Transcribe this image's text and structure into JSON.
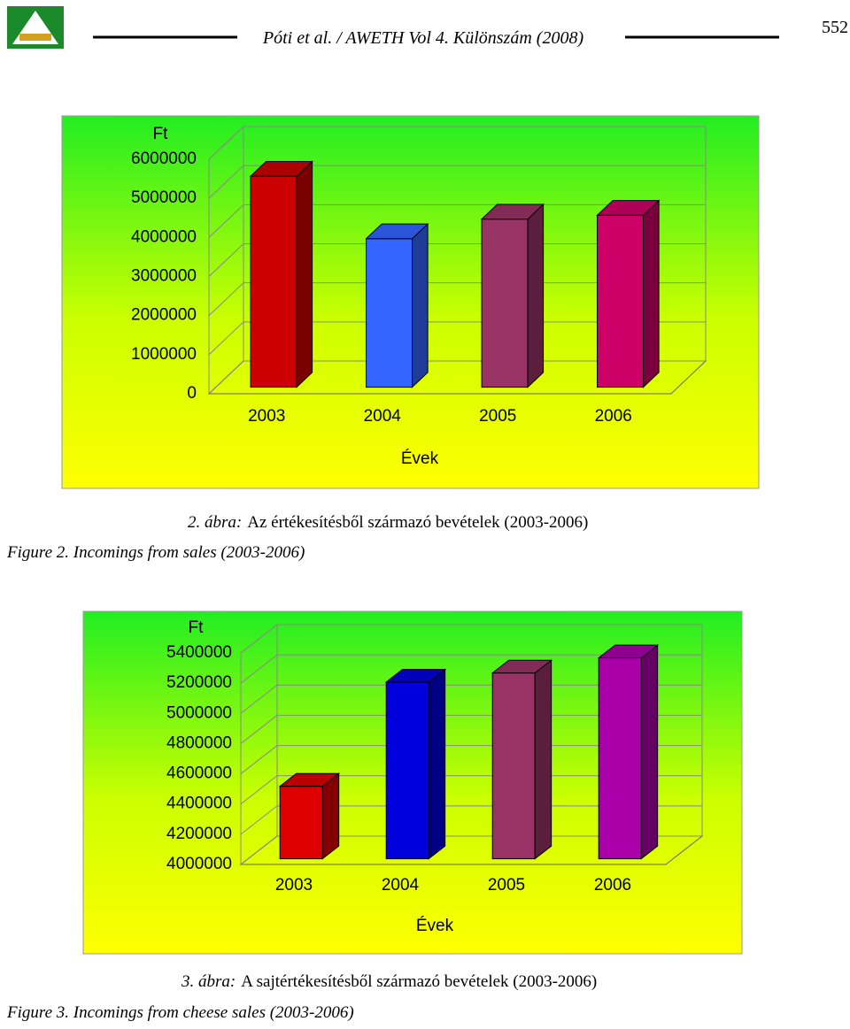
{
  "header": {
    "journal": "Póti et al. / AWETH Vol 4. Különszám (2008)",
    "page": "552"
  },
  "chart_data": [
    {
      "type": "bar",
      "y_label": "Ft",
      "x_label": "Évek",
      "categories": [
        "2003",
        "2004",
        "2005",
        "2006"
      ],
      "values": [
        5400000,
        3800000,
        4300000,
        4400000
      ],
      "colors": [
        "#cc0000",
        "#3366ff",
        "#993366",
        "#cc0066"
      ],
      "ylim": [
        0,
        6000000
      ],
      "yticks": [
        0,
        1000000,
        2000000,
        3000000,
        4000000,
        5000000,
        6000000
      ],
      "grid": true,
      "caption": {
        "label": "2. ábra:",
        "text": "Az értékesítésből származó bevételek (2003-2006)",
        "english": "Figure 2. Incomings from sales (2003-2006)"
      }
    },
    {
      "type": "bar",
      "y_label": "Ft",
      "x_label": "Évek",
      "categories": [
        "2003",
        "2004",
        "2005",
        "2006"
      ],
      "values": [
        4480000,
        5170000,
        5230000,
        5330000
      ],
      "colors": [
        "#dd0000",
        "#0000dd",
        "#993366",
        "#aa00aa"
      ],
      "ylim": [
        4000000,
        5400000
      ],
      "yticks": [
        4000000,
        4200000,
        4400000,
        4600000,
        4800000,
        5000000,
        5200000,
        5400000
      ],
      "grid": true,
      "caption": {
        "label": "3. ábra:",
        "text": "A sajtértékesítésből származó bevételek (2003-2006)",
        "english": "Figure 3. Incomings from cheese sales (2003-2006)"
      }
    }
  ]
}
